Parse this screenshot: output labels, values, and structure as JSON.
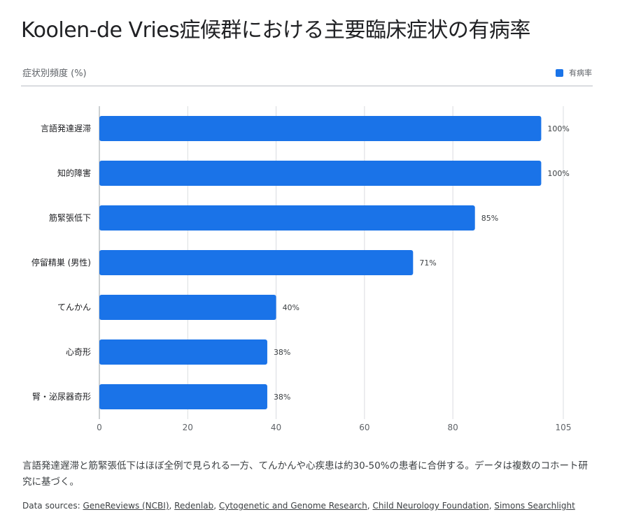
{
  "title": "Koolen-de Vries症候群における主要臨床症状の有病率",
  "subtitle": "症状別頻度 (%)",
  "legend_label": "有病率",
  "note": "言語発達遅滞と筋緊張低下はほぼ全例で見られる一方、てんかんや心疾患は約30-50%の患者に合併する。データは複数のコホート研究に基づく。",
  "sources_label": "Data sources:",
  "sources": [
    "GeneReviews (NCBI)",
    "Redenlab",
    "Cytogenetic and Genome Research",
    "Child Neurology Foundation",
    "Simons Searchlight"
  ],
  "colors": {
    "bar": "#1a73e8",
    "grid": "#dadce0"
  },
  "chart_data": {
    "type": "bar",
    "orientation": "horizontal",
    "categories": [
      "言語発達遅滞",
      "知的障害",
      "筋緊張低下",
      "停留精巣 (男性)",
      "てんかん",
      "心奇形",
      "腎・泌尿器奇形"
    ],
    "series": [
      {
        "name": "有病率",
        "values": [
          100,
          100,
          85,
          71,
          40,
          38,
          38
        ]
      }
    ],
    "data_labels": [
      "100%",
      "100%",
      "85%",
      "71%",
      "40%",
      "38%",
      "38%"
    ],
    "xlim": [
      0,
      105
    ],
    "xticks": [
      0,
      20,
      40,
      60,
      80,
      105
    ],
    "grid": true,
    "legend_position": "top-right"
  }
}
